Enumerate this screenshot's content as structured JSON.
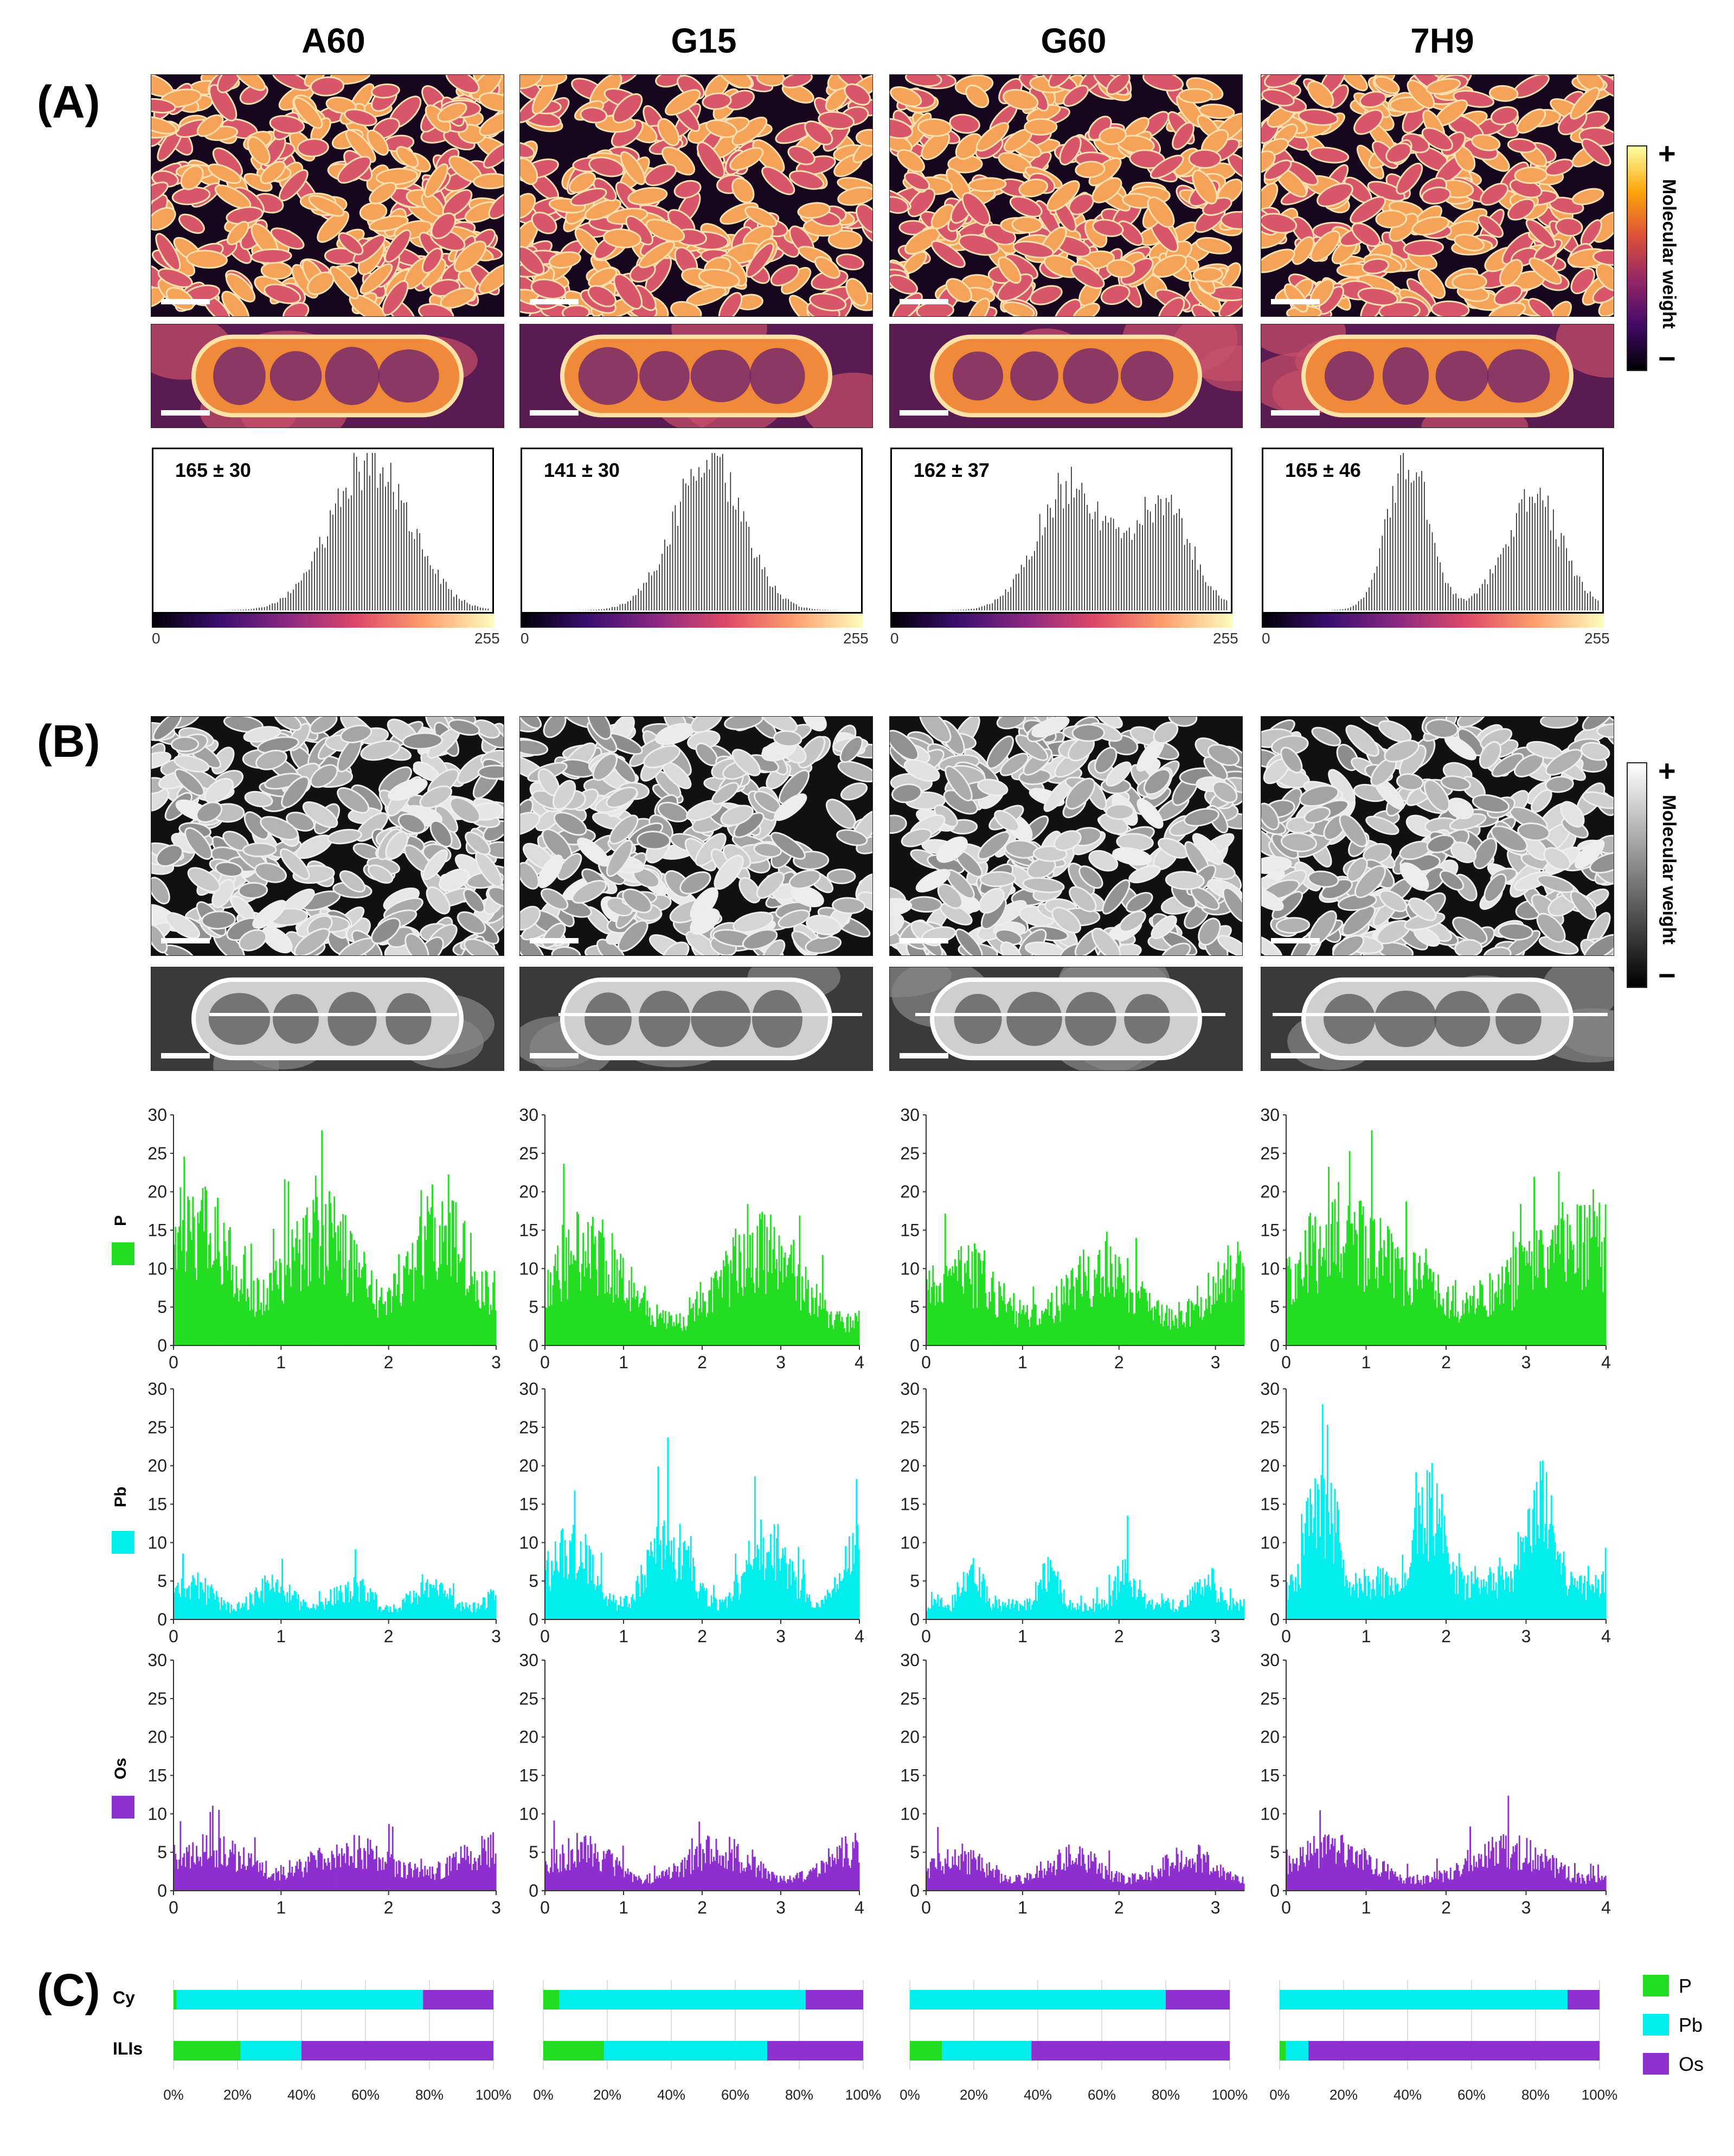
{
  "columns": [
    "A60",
    "G15",
    "G60",
    "7H9"
  ],
  "panels": {
    "A": "(A)",
    "B": "(B)",
    "C": "(C)"
  },
  "colorbar": {
    "label": "Molecular weight",
    "plus": "+",
    "minus": "−"
  },
  "histograms": {
    "values": [
      "165 ± 30",
      "141 ± 30",
      "162 ± 37",
      "165 ± 46"
    ],
    "axis_min": "0",
    "axis_max": "255"
  },
  "elements": {
    "P": "P",
    "Pb": "Pb",
    "Os": "Os"
  },
  "colors": {
    "P": "#22dd22",
    "Pb": "#00eeee",
    "Os": "#8e2fd0",
    "inferno_low": "#000004",
    "inferno_mid": "#b5367a",
    "inferno_high": "#fcffa4"
  },
  "chart_data": [
    {
      "type": "bar",
      "panel": "B",
      "column": "A60",
      "element": "P",
      "xlim": [
        0,
        3
      ],
      "ylim": [
        0,
        30
      ],
      "xticks": [
        "0",
        "1",
        "2",
        "3"
      ],
      "yticks": [
        "0",
        "5",
        "10",
        "15",
        "20",
        "25",
        "30"
      ],
      "color": "#22dd22"
    },
    {
      "type": "bar",
      "panel": "B",
      "column": "G15",
      "element": "P",
      "xlim": [
        0,
        4
      ],
      "ylim": [
        0,
        30
      ],
      "xticks": [
        "0",
        "1",
        "2",
        "3",
        "4"
      ],
      "yticks": [
        "0",
        "5",
        "10",
        "15",
        "20",
        "25",
        "30"
      ],
      "color": "#22dd22"
    },
    {
      "type": "bar",
      "panel": "B",
      "column": "G60",
      "element": "P",
      "xlim": [
        0,
        3.3
      ],
      "ylim": [
        0,
        30
      ],
      "xticks": [
        "0",
        "1",
        "2",
        "3"
      ],
      "yticks": [
        "0",
        "5",
        "10",
        "15",
        "20",
        "25",
        "30"
      ],
      "color": "#22dd22"
    },
    {
      "type": "bar",
      "panel": "B",
      "column": "7H9",
      "element": "P",
      "xlim": [
        0,
        4
      ],
      "ylim": [
        0,
        30
      ],
      "xticks": [
        "0",
        "1",
        "2",
        "3",
        "4"
      ],
      "yticks": [
        "0",
        "5",
        "10",
        "15",
        "20",
        "25",
        "30"
      ],
      "color": "#22dd22"
    },
    {
      "type": "bar",
      "panel": "B",
      "column": "A60",
      "element": "Pb",
      "xlim": [
        0,
        3
      ],
      "ylim": [
        0,
        30
      ],
      "xticks": [
        "0",
        "1",
        "2",
        "3"
      ],
      "yticks": [
        "0",
        "5",
        "10",
        "15",
        "20",
        "25",
        "30"
      ],
      "color": "#00eeee"
    },
    {
      "type": "bar",
      "panel": "B",
      "column": "G15",
      "element": "Pb",
      "xlim": [
        0,
        4
      ],
      "ylim": [
        0,
        30
      ],
      "xticks": [
        "0",
        "1",
        "2",
        "3",
        "4"
      ],
      "yticks": [
        "0",
        "5",
        "10",
        "15",
        "20",
        "25",
        "30"
      ],
      "color": "#00eeee"
    },
    {
      "type": "bar",
      "panel": "B",
      "column": "G60",
      "element": "Pb",
      "xlim": [
        0,
        3.3
      ],
      "ylim": [
        0,
        30
      ],
      "xticks": [
        "0",
        "1",
        "2",
        "3"
      ],
      "yticks": [
        "0",
        "5",
        "10",
        "15",
        "20",
        "25",
        "30"
      ],
      "color": "#00eeee"
    },
    {
      "type": "bar",
      "panel": "B",
      "column": "7H9",
      "element": "Pb",
      "xlim": [
        0,
        4
      ],
      "ylim": [
        0,
        30
      ],
      "xticks": [
        "0",
        "1",
        "2",
        "3",
        "4"
      ],
      "yticks": [
        "0",
        "5",
        "10",
        "15",
        "20",
        "25",
        "30"
      ],
      "color": "#00eeee"
    },
    {
      "type": "bar",
      "panel": "B",
      "column": "A60",
      "element": "Os",
      "xlim": [
        0,
        3
      ],
      "ylim": [
        0,
        30
      ],
      "xticks": [
        "0",
        "1",
        "2",
        "3"
      ],
      "yticks": [
        "0",
        "5",
        "10",
        "15",
        "20",
        "25",
        "30"
      ],
      "color": "#8e2fd0"
    },
    {
      "type": "bar",
      "panel": "B",
      "column": "G15",
      "element": "Os",
      "xlim": [
        0,
        4
      ],
      "ylim": [
        0,
        30
      ],
      "xticks": [
        "0",
        "1",
        "2",
        "3",
        "4"
      ],
      "yticks": [
        "0",
        "5",
        "10",
        "15",
        "20",
        "25",
        "30"
      ],
      "color": "#8e2fd0"
    },
    {
      "type": "bar",
      "panel": "B",
      "column": "G60",
      "element": "Os",
      "xlim": [
        0,
        3.3
      ],
      "ylim": [
        0,
        30
      ],
      "xticks": [
        "0",
        "1",
        "2",
        "3"
      ],
      "yticks": [
        "0",
        "5",
        "10",
        "15",
        "20",
        "25",
        "30"
      ],
      "color": "#8e2fd0"
    },
    {
      "type": "bar",
      "panel": "B",
      "column": "7H9",
      "element": "Os",
      "xlim": [
        0,
        4
      ],
      "ylim": [
        0,
        30
      ],
      "xticks": [
        "0",
        "1",
        "2",
        "3",
        "4"
      ],
      "yticks": [
        "0",
        "5",
        "10",
        "15",
        "20",
        "25",
        "30"
      ],
      "color": "#8e2fd0"
    },
    {
      "type": "bar",
      "panel": "C",
      "stacked": true,
      "orientation": "horizontal",
      "rows": [
        "Cy",
        "ILIs"
      ],
      "xticks": [
        "0%",
        "20%",
        "40%",
        "60%",
        "80%",
        "100%"
      ],
      "groups": [
        {
          "column": "A60",
          "series": [
            {
              "name": "P",
              "values": [
                1,
                21
              ]
            },
            {
              "name": "Pb",
              "values": [
                77,
                19
              ]
            },
            {
              "name": "Os",
              "values": [
                22,
                60
              ]
            }
          ]
        },
        {
          "column": "G15",
          "series": [
            {
              "name": "P",
              "values": [
                5,
                19
              ]
            },
            {
              "name": "Pb",
              "values": [
                77,
                51
              ]
            },
            {
              "name": "Os",
              "values": [
                18,
                30
              ]
            }
          ]
        },
        {
          "column": "G60",
          "series": [
            {
              "name": "P",
              "values": [
                0,
                10
              ]
            },
            {
              "name": "Pb",
              "values": [
                80,
                28
              ]
            },
            {
              "name": "Os",
              "values": [
                20,
                62
              ]
            }
          ]
        },
        {
          "column": "7H9",
          "series": [
            {
              "name": "P",
              "values": [
                0,
                2
              ]
            },
            {
              "name": "Pb",
              "values": [
                90,
                7
              ]
            },
            {
              "name": "Os",
              "values": [
                10,
                91
              ]
            }
          ]
        }
      ]
    }
  ]
}
